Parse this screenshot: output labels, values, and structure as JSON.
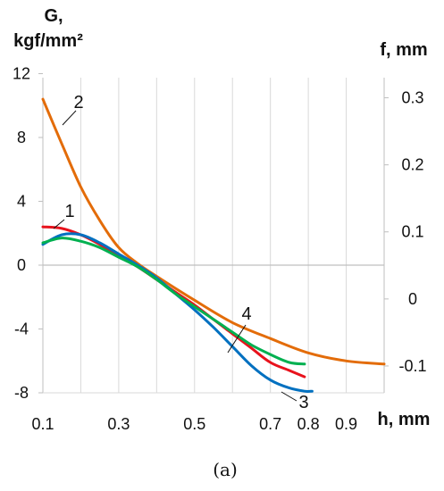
{
  "chart_data": {
    "type": "line",
    "xlabel": "h, mm",
    "y_left_label_line1": "G,",
    "y_left_label_line2": "kgf/mm²",
    "y_right_label": "f, mm",
    "caption": "(a)",
    "xlim": [
      0.1,
      1.0
    ],
    "ylim_left": [
      -8,
      12
    ],
    "ylim_right": [
      -0.14,
      0.33
    ],
    "x_ticks": [
      "0.1",
      "0.3",
      "0.5",
      "0.7",
      "0.8",
      "0.9"
    ],
    "x_tick_values": [
      0.1,
      0.3,
      0.5,
      0.7,
      0.8,
      0.9
    ],
    "y_left_ticks": [
      "12",
      "8",
      "4",
      "0",
      "-4",
      "-8"
    ],
    "y_left_tick_values": [
      12,
      8,
      4,
      0,
      -4,
      -8
    ],
    "y_right_ticks": [
      "0.3",
      "0.2",
      "0.1",
      "0",
      "-0.1"
    ],
    "y_right_tick_values": [
      0.3,
      0.2,
      0.1,
      0,
      -0.1
    ],
    "grid": "vertical",
    "series": [
      {
        "name": "1",
        "color": "#e8121c",
        "x": [
          0.1,
          0.15,
          0.2,
          0.25,
          0.3,
          0.35,
          0.4,
          0.45,
          0.5,
          0.55,
          0.6,
          0.65,
          0.7,
          0.75,
          0.79
        ],
        "y": [
          2.4,
          2.3,
          1.9,
          1.3,
          0.6,
          -0.1,
          -0.9,
          -1.7,
          -2.5,
          -3.4,
          -4.3,
          -5.2,
          -6.1,
          -6.6,
          -7.0
        ]
      },
      {
        "name": "2",
        "color": "#e36c09",
        "x": [
          0.1,
          0.15,
          0.2,
          0.25,
          0.3,
          0.35,
          0.4,
          0.5,
          0.6,
          0.7,
          0.8,
          0.9,
          1.0
        ],
        "y": [
          10.4,
          7.6,
          4.9,
          2.8,
          1.1,
          0.1,
          -0.7,
          -2.2,
          -3.6,
          -4.6,
          -5.5,
          -6.0,
          -6.2
        ]
      },
      {
        "name": "3",
        "color": "#0070c0",
        "x": [
          0.1,
          0.15,
          0.2,
          0.25,
          0.3,
          0.35,
          0.4,
          0.45,
          0.5,
          0.55,
          0.6,
          0.65,
          0.7,
          0.75,
          0.79,
          0.81
        ],
        "y": [
          1.3,
          1.9,
          1.9,
          1.4,
          0.7,
          0.0,
          -0.8,
          -1.8,
          -2.8,
          -3.9,
          -5.1,
          -6.3,
          -7.2,
          -7.7,
          -7.9,
          -7.9
        ]
      },
      {
        "name": "4",
        "color": "#00b050",
        "x": [
          0.1,
          0.15,
          0.2,
          0.25,
          0.3,
          0.35,
          0.4,
          0.45,
          0.5,
          0.55,
          0.6,
          0.65,
          0.7,
          0.75,
          0.79
        ],
        "y": [
          1.4,
          1.7,
          1.5,
          1.1,
          0.5,
          -0.1,
          -0.9,
          -1.8,
          -2.6,
          -3.4,
          -4.2,
          -5.0,
          -5.6,
          -6.1,
          -6.2
        ]
      }
    ],
    "annotations": [
      {
        "text": "1",
        "series": "1"
      },
      {
        "text": "2",
        "series": "2"
      },
      {
        "text": "3",
        "series": "3"
      },
      {
        "text": "4",
        "series": "4"
      }
    ]
  }
}
